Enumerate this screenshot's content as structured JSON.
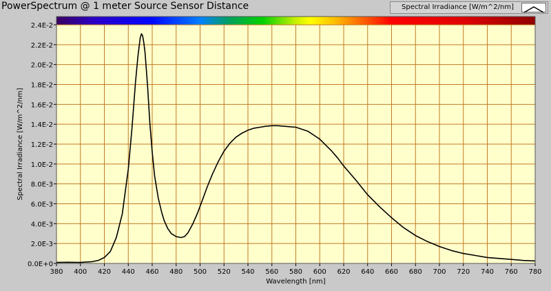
{
  "window": {
    "title": "PowerSpectrum @ 1 meter Source Sensor Distance"
  },
  "legend": {
    "label": "Spectral Irradiance [W/m^2/nm]"
  },
  "colors": {
    "plot_background": "#ffffcc",
    "grid": "#c07a24",
    "line": "#000000",
    "frame": "#c9c9c9"
  },
  "chart_data": {
    "type": "line",
    "title": "PowerSpectrum @ 1 meter Source Sensor Distance",
    "xlabel": "Wavelength [nm]",
    "ylabel": "Spectral Irradiance [W/m^2/nm]",
    "xlim": [
      380,
      780
    ],
    "ylim": [
      0,
      0.024
    ],
    "grid": true,
    "legend_position": "top-right",
    "spectrum_bar": true,
    "x_ticks": [
      380,
      400,
      420,
      440,
      460,
      480,
      500,
      520,
      540,
      560,
      580,
      600,
      620,
      640,
      660,
      680,
      700,
      720,
      740,
      760,
      780
    ],
    "x_tick_labels": [
      "380",
      "400",
      "420",
      "440",
      "460",
      "480",
      "500",
      "520",
      "540",
      "560",
      "580",
      "600",
      "620",
      "640",
      "660",
      "680",
      "700",
      "720",
      "740",
      "760",
      "780"
    ],
    "y_ticks": [
      0,
      0.002,
      0.004,
      0.006,
      0.008,
      0.01,
      0.012,
      0.014,
      0.016,
      0.018,
      0.02,
      0.022,
      0.024
    ],
    "y_tick_labels": [
      "0.0E+0",
      "2.0E-3",
      "4.0E-3",
      "6.0E-3",
      "8.0E-3",
      "1.0E-2",
      "1.2E-2",
      "1.4E-2",
      "1.6E-2",
      "1.8E-2",
      "2.0E-2",
      "2.2E-2",
      "2.4E-2"
    ],
    "series": [
      {
        "name": "Spectral Irradiance [W/m^2/nm]",
        "x": [
          380,
          390,
          400,
          410,
          415,
          420,
          425,
          430,
          435,
          440,
          443,
          446,
          448,
          450,
          451,
          452,
          453,
          454,
          456,
          458,
          460,
          462,
          465,
          468,
          470,
          473,
          476,
          480,
          484,
          487,
          490,
          494,
          498,
          502,
          506,
          510,
          515,
          520,
          525,
          530,
          535,
          540,
          545,
          550,
          555,
          560,
          565,
          570,
          575,
          580,
          585,
          590,
          595,
          600,
          605,
          610,
          615,
          620,
          630,
          640,
          650,
          660,
          670,
          680,
          690,
          700,
          710,
          720,
          730,
          740,
          750,
          760,
          770,
          780
        ],
        "y": [
          0.0001,
          0.00012,
          0.0001,
          0.00018,
          0.0003,
          0.0006,
          0.0012,
          0.0026,
          0.005,
          0.0095,
          0.0135,
          0.0182,
          0.0208,
          0.0227,
          0.0231,
          0.0229,
          0.0222,
          0.0212,
          0.018,
          0.0142,
          0.0112,
          0.0088,
          0.0066,
          0.0051,
          0.0043,
          0.0035,
          0.003,
          0.0027,
          0.0026,
          0.0027,
          0.0031,
          0.004,
          0.0051,
          0.0064,
          0.0077,
          0.0089,
          0.0102,
          0.0113,
          0.0121,
          0.0127,
          0.0131,
          0.0134,
          0.0136,
          0.0137,
          0.0138,
          0.01385,
          0.01385,
          0.0138,
          0.01375,
          0.0137,
          0.0135,
          0.0133,
          0.0129,
          0.0125,
          0.0119,
          0.0113,
          0.0106,
          0.0098,
          0.0084,
          0.0069,
          0.0057,
          0.0046,
          0.0036,
          0.0028,
          0.0022,
          0.0017,
          0.0013,
          0.001,
          0.0008,
          0.0006,
          0.0005,
          0.0004,
          0.0003,
          0.00025
        ]
      }
    ]
  }
}
